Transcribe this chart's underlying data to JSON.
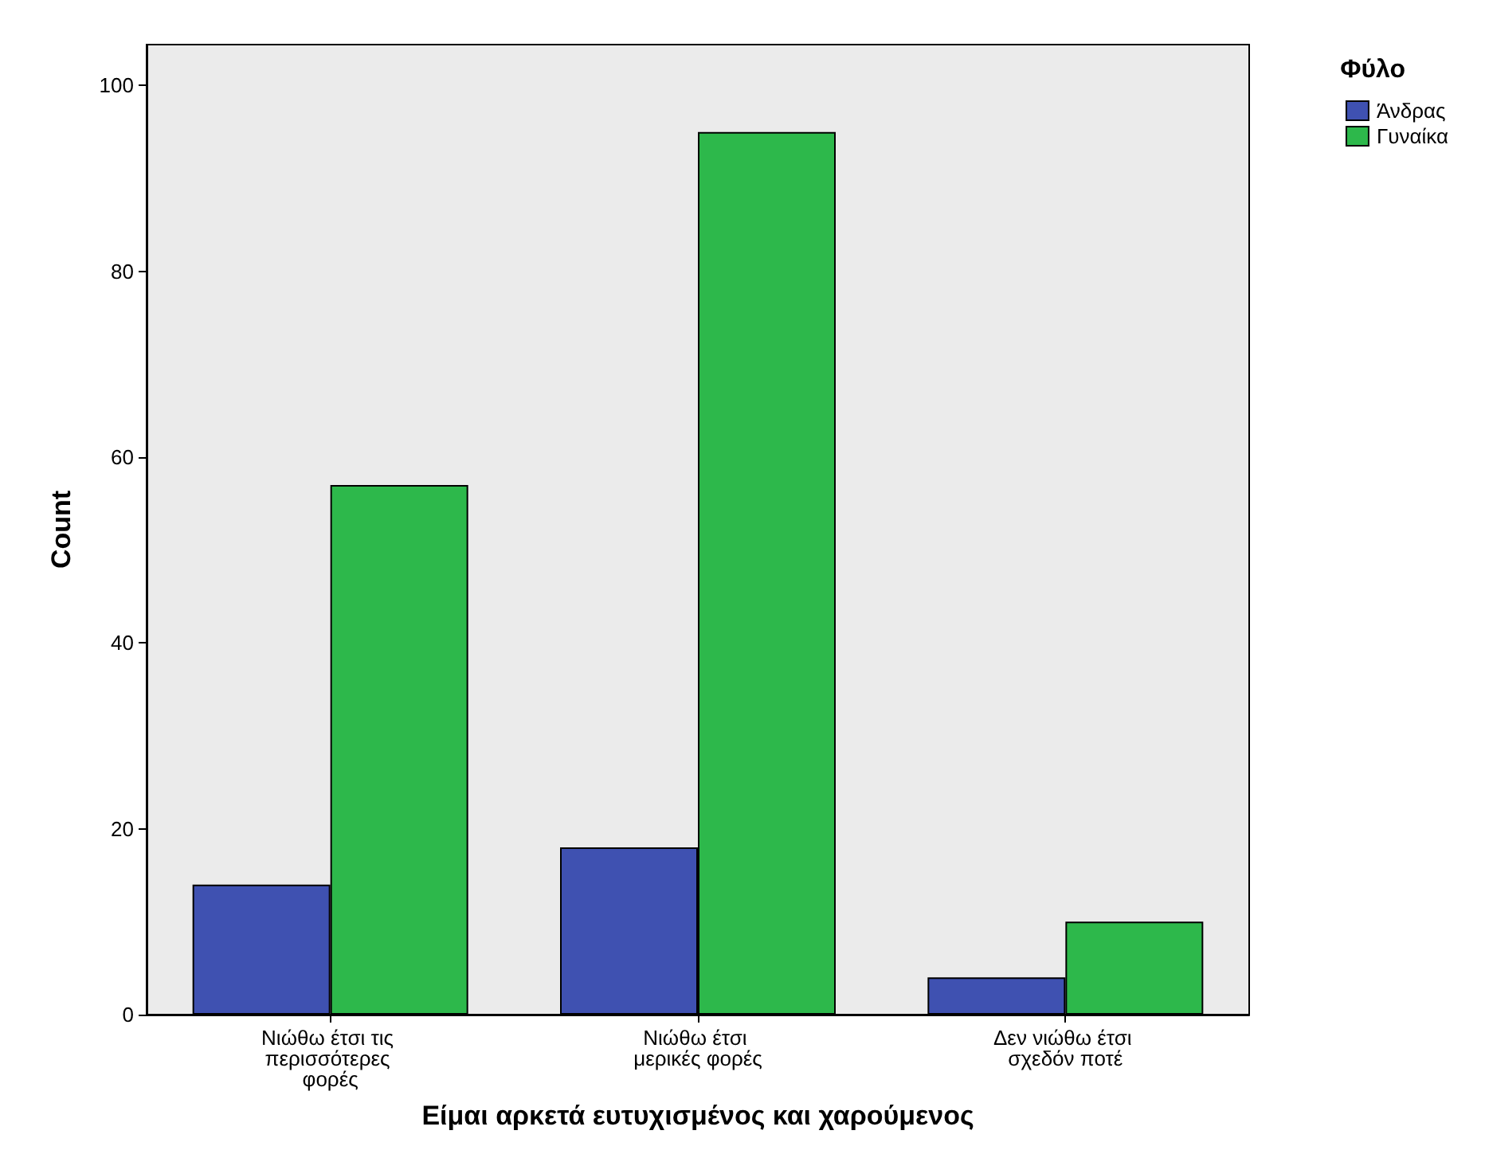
{
  "chart_data": {
    "type": "bar",
    "xlabel": "Είμαι αρκετά ευτυχισμένος και χαρούμενος",
    "ylabel": "Count",
    "legend_title": "Φύλο",
    "categories": [
      "Νιώθω έτσι τις περισσότερες φορές",
      "Νιώθω έτσι μερικές φορές",
      "Δεν νιώθω έτσι σχεδόν ποτέ"
    ],
    "series": [
      {
        "name": "Άνδρας",
        "color": "#3f51b1",
        "values": [
          14,
          18,
          4
        ]
      },
      {
        "name": "Γυναίκα",
        "color": "#2db84b",
        "values": [
          57,
          95,
          10
        ]
      }
    ],
    "ylim": [
      0,
      104.4
    ],
    "yticks": [
      0,
      20,
      40,
      60,
      80,
      100
    ],
    "grid": false,
    "legend": "top right"
  }
}
